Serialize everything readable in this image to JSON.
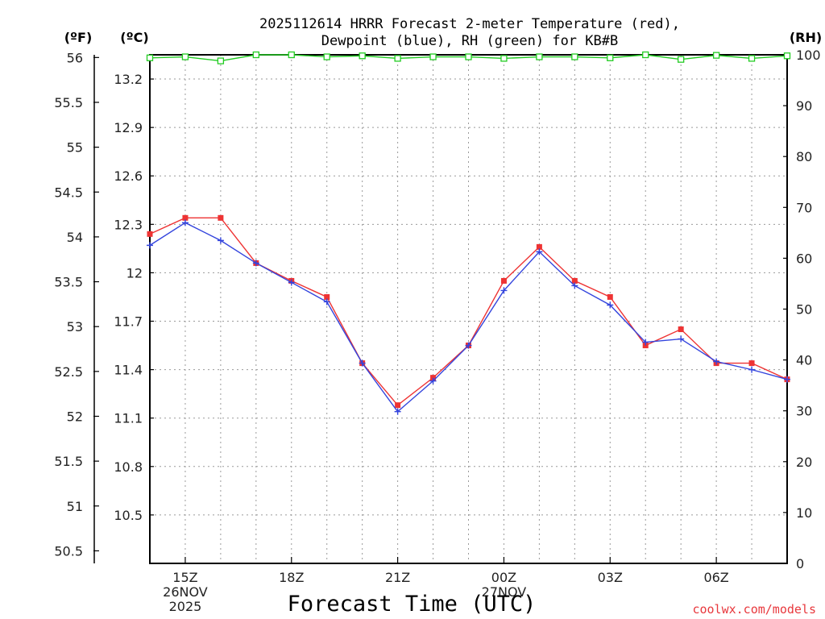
{
  "title": {
    "line1": "2025112614 HRRR Forecast 2-meter Temperature (red),",
    "line2": "Dewpoint (blue), RH (green) for KB#B"
  },
  "units": {
    "left_f": "(ºF)",
    "left_c": "(ºC)",
    "right_rh": "(RH)"
  },
  "xlabel": "Forecast Time (UTC)",
  "credit": "coolwx.com/models",
  "colors": {
    "temperature": "#ee3333",
    "dewpoint": "#3344dd",
    "rh": "#22cc22",
    "grid": "#9a9a9a"
  },
  "chart_data": {
    "type": "line",
    "x": [
      14,
      15,
      16,
      17,
      18,
      19,
      20,
      21,
      22,
      23,
      24,
      25,
      26,
      27,
      28,
      29,
      30,
      31,
      32
    ],
    "x_range": [
      14,
      32
    ],
    "x_ticks": [
      {
        "x": 15,
        "lines": [
          "15Z",
          "26NOV",
          "2025"
        ]
      },
      {
        "x": 18,
        "lines": [
          "18Z"
        ]
      },
      {
        "x": 21,
        "lines": [
          "21Z"
        ]
      },
      {
        "x": 24,
        "lines": [
          "00Z",
          "27NOV"
        ]
      },
      {
        "x": 27,
        "lines": [
          "03Z"
        ]
      },
      {
        "x": 30,
        "lines": [
          "06Z"
        ]
      }
    ],
    "y_celsius": {
      "range": [
        10.2,
        13.35
      ],
      "ticks": [
        "13.2",
        "12.9",
        "12.6",
        "12.3",
        "12",
        "11.7",
        "11.4",
        "11.1",
        "10.8",
        "10.5"
      ]
    },
    "y_fahrenheit": {
      "range": [
        50.36,
        56.03
      ],
      "ticks": [
        "56",
        "55.5",
        "55",
        "54.5",
        "54",
        "53.5",
        "53",
        "52.5",
        "52",
        "51.5",
        "51",
        "50.5"
      ]
    },
    "y_rh": {
      "range": [
        0,
        100
      ],
      "ticks": [
        "100",
        "90",
        "80",
        "70",
        "60",
        "50",
        "40",
        "30",
        "20",
        "10",
        "0"
      ]
    },
    "series": [
      {
        "name": "Temperature (°C)",
        "color": "red",
        "marker": "square",
        "values": [
          12.24,
          12.34,
          12.34,
          12.06,
          11.95,
          11.85,
          11.44,
          11.18,
          11.35,
          11.55,
          11.95,
          12.16,
          11.95,
          11.85,
          11.55,
          11.65,
          11.44,
          11.44,
          11.34
        ]
      },
      {
        "name": "Dewpoint (°C)",
        "color": "blue",
        "marker": "plus",
        "values": [
          12.17,
          12.31,
          12.2,
          12.06,
          11.94,
          11.82,
          11.44,
          11.14,
          11.33,
          11.55,
          11.89,
          12.13,
          11.92,
          11.8,
          11.57,
          11.59,
          11.45,
          11.4,
          11.34
        ]
      },
      {
        "name": "Relative Humidity (%)",
        "color": "green",
        "marker": "open-square",
        "values": [
          99.4,
          99.6,
          98.8,
          100,
          100,
          99.6,
          99.8,
          99.3,
          99.6,
          99.6,
          99.3,
          99.6,
          99.6,
          99.4,
          100,
          99.1,
          99.9,
          99.3,
          99.8
        ]
      }
    ]
  }
}
